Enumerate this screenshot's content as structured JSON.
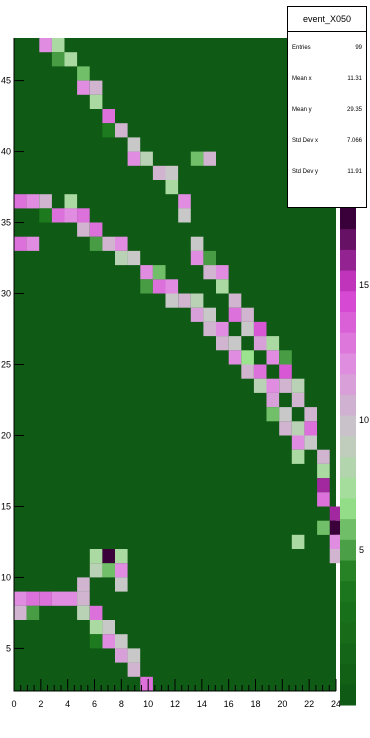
{
  "chart_data": {
    "type": "heatmap",
    "title": "",
    "xlabel": "",
    "ylabel": "",
    "xlim": [
      0,
      24
    ],
    "ylim": [
      2,
      48
    ],
    "x_ticks": [
      "0",
      "2",
      "4",
      "6",
      "8",
      "10",
      "12",
      "14",
      "16",
      "18",
      "20",
      "22",
      "24"
    ],
    "y_ticks": [
      "5",
      "10",
      "15",
      "20",
      "25",
      "30",
      "35",
      "40",
      "45"
    ],
    "z_ticks": [
      "5",
      "10",
      "15"
    ],
    "colors": {
      "background": "#0f5a14",
      "low": "#1e7a1e",
      "mid": "#9be38f",
      "grey": "#c8c8c8",
      "pink": "#e08ce0",
      "magenta": "#d43cd0",
      "high": "#3a003a"
    },
    "cells": [
      {
        "x": 2,
        "y": 47,
        "v": 14
      },
      {
        "x": 3,
        "y": 47,
        "v": 9
      },
      {
        "x": 3,
        "y": 46,
        "v": 6
      },
      {
        "x": 4,
        "y": 46,
        "v": 9
      },
      {
        "x": 5,
        "y": 45,
        "v": 7
      },
      {
        "x": 5,
        "y": 44,
        "v": 14
      },
      {
        "x": 6,
        "y": 44,
        "v": 12
      },
      {
        "x": 6,
        "y": 43,
        "v": 9
      },
      {
        "x": 7,
        "y": 42,
        "v": 15
      },
      {
        "x": 7,
        "y": 41,
        "v": 5
      },
      {
        "x": 8,
        "y": 41,
        "v": 12
      },
      {
        "x": 9,
        "y": 40,
        "v": 11
      },
      {
        "x": 9,
        "y": 39,
        "v": 14
      },
      {
        "x": 10,
        "y": 39,
        "v": 10
      },
      {
        "x": 11,
        "y": 38,
        "v": 12
      },
      {
        "x": 12,
        "y": 38,
        "v": 11
      },
      {
        "x": 12,
        "y": 37,
        "v": 9
      },
      {
        "x": 13,
        "y": 36,
        "v": 14
      },
      {
        "x": 13,
        "y": 35,
        "v": 11
      },
      {
        "x": 14,
        "y": 39,
        "v": 7
      },
      {
        "x": 15,
        "y": 39,
        "v": 12
      },
      {
        "x": 0,
        "y": 36,
        "v": 15
      },
      {
        "x": 1,
        "y": 36,
        "v": 14
      },
      {
        "x": 2,
        "y": 36,
        "v": 12
      },
      {
        "x": 2,
        "y": 35,
        "v": 5
      },
      {
        "x": 3,
        "y": 35,
        "v": 15
      },
      {
        "x": 4,
        "y": 36,
        "v": 9
      },
      {
        "x": 4,
        "y": 35,
        "v": 14
      },
      {
        "x": 5,
        "y": 35,
        "v": 15
      },
      {
        "x": 5,
        "y": 34,
        "v": 12
      },
      {
        "x": 6,
        "y": 34,
        "v": 15
      },
      {
        "x": 6,
        "y": 33,
        "v": 6
      },
      {
        "x": 7,
        "y": 33,
        "v": 12
      },
      {
        "x": 8,
        "y": 33,
        "v": 14
      },
      {
        "x": 8,
        "y": 32,
        "v": 10
      },
      {
        "x": 9,
        "y": 32,
        "v": 11
      },
      {
        "x": 10,
        "y": 31,
        "v": 14
      },
      {
        "x": 10,
        "y": 30,
        "v": 6
      },
      {
        "x": 11,
        "y": 30,
        "v": 15
      },
      {
        "x": 11,
        "y": 31,
        "v": 7
      },
      {
        "x": 12,
        "y": 30,
        "v": 14
      },
      {
        "x": 12,
        "y": 29,
        "v": 11
      },
      {
        "x": 13,
        "y": 29,
        "v": 12
      },
      {
        "x": 14,
        "y": 29,
        "v": 10
      },
      {
        "x": 14,
        "y": 28,
        "v": 13
      },
      {
        "x": 15,
        "y": 28,
        "v": 11
      },
      {
        "x": 15,
        "y": 27,
        "v": 12
      },
      {
        "x": 16,
        "y": 27,
        "v": 14
      },
      {
        "x": 16,
        "y": 26,
        "v": 12
      },
      {
        "x": 17,
        "y": 26,
        "v": 11
      },
      {
        "x": 17,
        "y": 25,
        "v": 14
      },
      {
        "x": 18,
        "y": 25,
        "v": 8
      },
      {
        "x": 18,
        "y": 24,
        "v": 12
      },
      {
        "x": 19,
        "y": 24,
        "v": 15
      },
      {
        "x": 19,
        "y": 23,
        "v": 10
      },
      {
        "x": 20,
        "y": 23,
        "v": 14
      },
      {
        "x": 20,
        "y": 22,
        "v": 13
      },
      {
        "x": 20,
        "y": 21,
        "v": 7
      },
      {
        "x": 21,
        "y": 21,
        "v": 11
      },
      {
        "x": 21,
        "y": 20,
        "v": 12
      },
      {
        "x": 22,
        "y": 20,
        "v": 10
      },
      {
        "x": 22,
        "y": 19,
        "v": 14
      },
      {
        "x": 22,
        "y": 18,
        "v": 9
      },
      {
        "x": 0,
        "y": 33,
        "v": 15
      },
      {
        "x": 1,
        "y": 33,
        "v": 14
      },
      {
        "x": 14,
        "y": 33,
        "v": 11
      },
      {
        "x": 14,
        "y": 32,
        "v": 14
      },
      {
        "x": 15,
        "y": 32,
        "v": 6
      },
      {
        "x": 15,
        "y": 31,
        "v": 12
      },
      {
        "x": 16,
        "y": 31,
        "v": 14
      },
      {
        "x": 16,
        "y": 30,
        "v": 9
      },
      {
        "x": 17,
        "y": 29,
        "v": 12
      },
      {
        "x": 17,
        "y": 28,
        "v": 15
      },
      {
        "x": 18,
        "y": 28,
        "v": 12
      },
      {
        "x": 18,
        "y": 27,
        "v": 11
      },
      {
        "x": 19,
        "y": 27,
        "v": 16
      },
      {
        "x": 19,
        "y": 26,
        "v": 13
      },
      {
        "x": 20,
        "y": 26,
        "v": 9
      },
      {
        "x": 20,
        "y": 25,
        "v": 14
      },
      {
        "x": 21,
        "y": 25,
        "v": 6
      },
      {
        "x": 21,
        "y": 24,
        "v": 16
      },
      {
        "x": 21,
        "y": 23,
        "v": 12
      },
      {
        "x": 22,
        "y": 23,
        "v": 10
      },
      {
        "x": 22,
        "y": 22,
        "v": 12
      },
      {
        "x": 23,
        "y": 21,
        "v": 12
      },
      {
        "x": 23,
        "y": 20,
        "v": 15
      },
      {
        "x": 23,
        "y": 19,
        "v": 11
      },
      {
        "x": 24,
        "y": 18,
        "v": 12
      },
      {
        "x": 24,
        "y": 17,
        "v": 9
      },
      {
        "x": 24,
        "y": 16,
        "v": 18
      },
      {
        "x": 24,
        "y": 15,
        "v": 15
      },
      {
        "x": 25,
        "y": 14,
        "v": 18
      },
      {
        "x": 25,
        "y": 13,
        "v": 20
      },
      {
        "x": 25,
        "y": 12,
        "v": 14
      },
      {
        "x": 25,
        "y": 11,
        "v": 12
      },
      {
        "x": 22,
        "y": 12,
        "v": 9
      },
      {
        "x": 24,
        "y": 13,
        "v": 7
      },
      {
        "x": 0,
        "y": 8,
        "v": 14
      },
      {
        "x": 1,
        "y": 8,
        "v": 15
      },
      {
        "x": 2,
        "y": 8,
        "v": 15
      },
      {
        "x": 3,
        "y": 8,
        "v": 14
      },
      {
        "x": 4,
        "y": 8,
        "v": 14
      },
      {
        "x": 5,
        "y": 8,
        "v": 12
      },
      {
        "x": 5,
        "y": 7,
        "v": 10
      },
      {
        "x": 6,
        "y": 7,
        "v": 15
      },
      {
        "x": 6,
        "y": 6,
        "v": 9
      },
      {
        "x": 7,
        "y": 6,
        "v": 11
      },
      {
        "x": 7,
        "y": 5,
        "v": 14
      },
      {
        "x": 8,
        "y": 5,
        "v": 11
      },
      {
        "x": 8,
        "y": 4,
        "v": 13
      },
      {
        "x": 9,
        "y": 4,
        "v": 11
      },
      {
        "x": 9,
        "y": 3,
        "v": 12
      },
      {
        "x": 10,
        "y": 2,
        "v": 15
      },
      {
        "x": 0,
        "y": 7,
        "v": 12
      },
      {
        "x": 1,
        "y": 7,
        "v": 6
      },
      {
        "x": 6,
        "y": 5,
        "v": 5
      },
      {
        "x": 6,
        "y": 11,
        "v": 9
      },
      {
        "x": 7,
        "y": 11,
        "v": 20
      },
      {
        "x": 8,
        "y": 11,
        "v": 9
      },
      {
        "x": 6,
        "y": 10,
        "v": 10
      },
      {
        "x": 7,
        "y": 10,
        "v": 7
      },
      {
        "x": 8,
        "y": 10,
        "v": 14
      },
      {
        "x": 8,
        "y": 9,
        "v": 11
      },
      {
        "x": 5,
        "y": 9,
        "v": 12
      }
    ]
  },
  "stats": {
    "title": "event_X050",
    "rows": [
      {
        "label": "Entries",
        "value": "99"
      },
      {
        "label": "Mean x",
        "value": "11.31"
      },
      {
        "label": "Mean y",
        "value": "29.35"
      },
      {
        "label": "Std Dev x",
        "value": "7.066"
      },
      {
        "label": "Std Dev y",
        "value": "11.91"
      }
    ]
  }
}
